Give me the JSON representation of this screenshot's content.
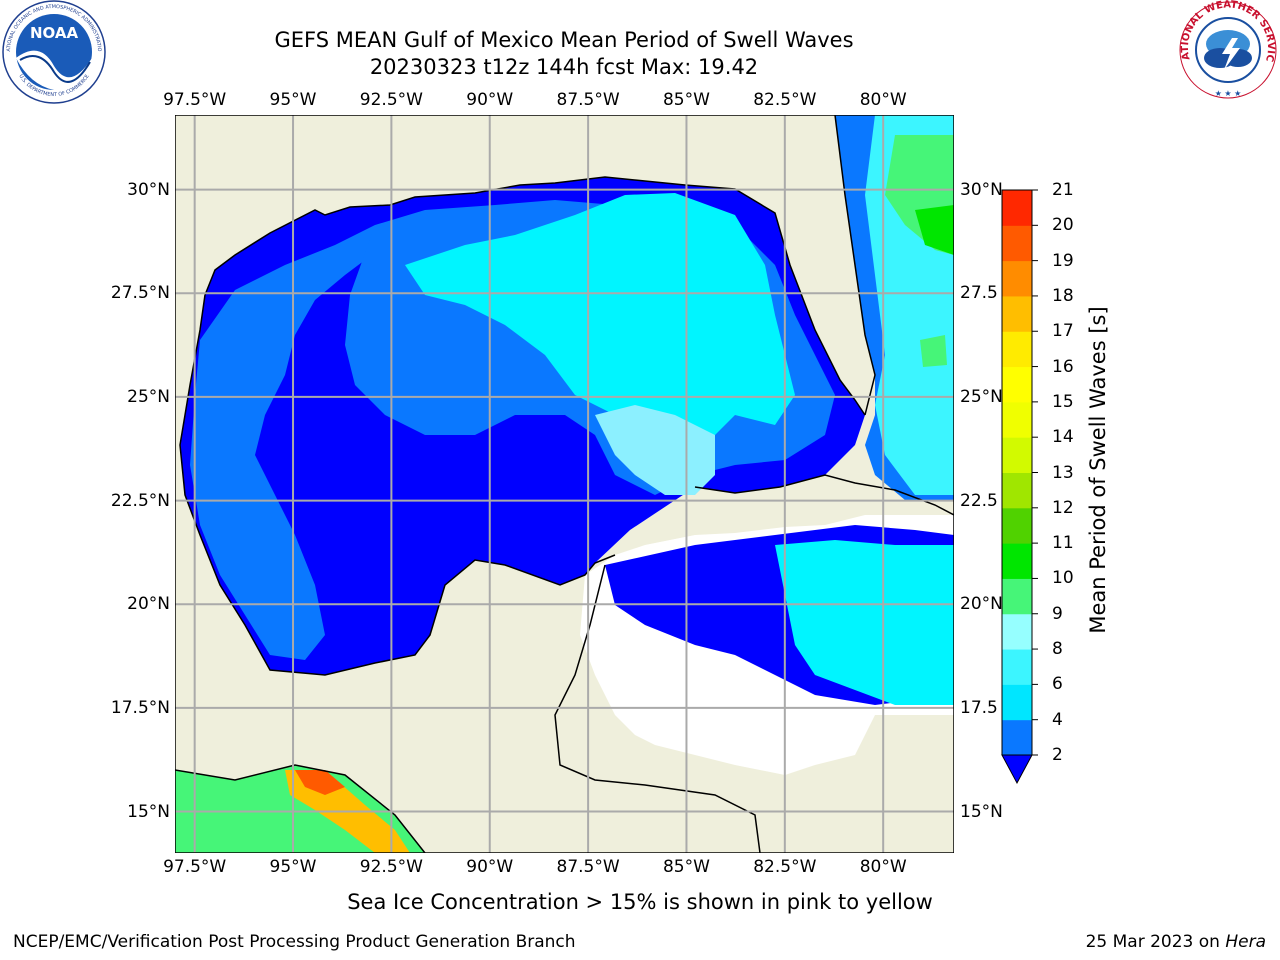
{
  "title": {
    "line1": "GEFS MEAN Gulf of Mexico Mean Period of Swell Waves",
    "line2": "20230323 t12z 144h fcst   Max: 19.42"
  },
  "map": {
    "lon_range": [
      -98.0,
      -78.2
    ],
    "lat_range": [
      14.0,
      31.8
    ],
    "lon_ticks": [
      "97.5°W",
      "95°W",
      "92.5°W",
      "90°W",
      "87.5°W",
      "85°W",
      "82.5°W",
      "80°W"
    ],
    "lon_values": [
      -97.5,
      -95,
      -92.5,
      -90,
      -87.5,
      -85,
      -82.5,
      -80
    ],
    "lat_ticks": [
      "15°N",
      "17.5°N",
      "20°N",
      "22.5°N",
      "25°N",
      "27.5°N",
      "30°N"
    ],
    "lat_ticks_right": [
      "15°N",
      "17.5",
      "20°N",
      "22.5",
      "25°N",
      "27.5",
      "30°N"
    ],
    "lat_values": [
      15,
      17.5,
      20,
      22.5,
      25,
      27.5,
      30
    ],
    "grid": true,
    "land_color": "#efefdc",
    "ocean_nodata_color": "#ffffff"
  },
  "colorbar": {
    "label": "Mean Period of Swell Waves [s]",
    "ticks": [
      "2",
      "4",
      "6",
      "8",
      "9",
      "10",
      "11",
      "12",
      "13",
      "14",
      "15",
      "16",
      "17",
      "18",
      "19",
      "20",
      "21"
    ],
    "colors": [
      "#0a78ff",
      "#00e6ff",
      "#3cf5ff",
      "#96ffff",
      "#46f578",
      "#00e600",
      "#50d200",
      "#a0e600",
      "#d2fa00",
      "#f0ff00",
      "#ffff00",
      "#ffeb00",
      "#ffbe00",
      "#ff8c00",
      "#ff5a00",
      "#ff2800"
    ],
    "extend_color": "#0000ff"
  },
  "footnote": "Sea Ice Concentration > 15% is shown in pink to yellow",
  "credit_left": "NCEP/EMC/Verification Post Processing Product Generation Branch",
  "credit_right_date": "25 Mar 2023 on ",
  "credit_right_host": "Hera",
  "logos": {
    "noaa": "NOAA",
    "noaa_ring_top": "NATIONAL OCEANIC AND ATMOSPHERIC ADMINISTRATION",
    "noaa_ring_bottom": "U.S. DEPARTMENT OF COMMERCE",
    "nws_ring": "NATIONAL WEATHER SERVICE"
  }
}
